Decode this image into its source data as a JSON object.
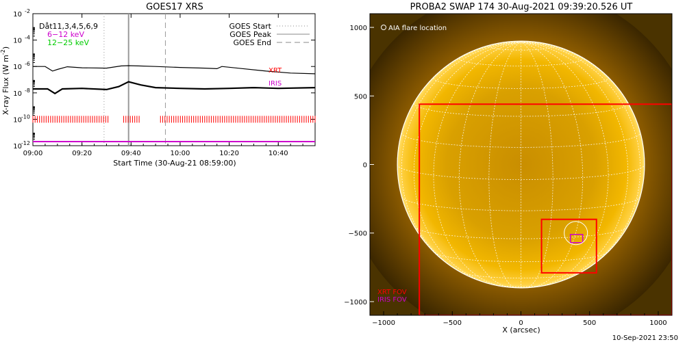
{
  "colors": {
    "background": "#ffffff",
    "axes": "#000000",
    "xrt": "#ff0000",
    "iris": "#cc00cc",
    "channel_low": "#cc00cc",
    "channel_high": "#00cc00",
    "sun_core": "#f5b800",
    "sun_dark": "#3a2800",
    "grid": "#ffffff"
  },
  "goes": {
    "title": "GOES17 XRS",
    "ylabel": "X-ray Flux (W m",
    "ylabel_sup": "-2",
    "ylabel_end": ")",
    "xlabel": "Start Time (30-Aug-21 08:59:00)",
    "legend_left": [
      {
        "text": "Dåt11,3,4,5,6,9",
        "color": "#000000"
      },
      {
        "text": "6−12 keV",
        "color": "#cc00cc"
      },
      {
        "text": "12−25 keV",
        "color": "#00cc00"
      }
    ],
    "legend_right": [
      {
        "text": "GOES Start",
        "style": "dotted"
      },
      {
        "text": "GOES Peak",
        "style": "solid"
      },
      {
        "text": "GOES End",
        "style": "dashed"
      }
    ],
    "labels": {
      "xrt": "XRT",
      "iris": "IRIS"
    }
  },
  "swap": {
    "title": "PROBA2 SWAP 174 30-Aug-2021 09:39:20.526 UT",
    "legend": "AIA flare location",
    "xlabel": "X (arcsec)",
    "fov_labels": {
      "xrt": "XRT FOV",
      "iris": "IRIS FOV"
    },
    "timestamp": "10-Sep-2021 23:50"
  },
  "chart_data": [
    {
      "type": "line",
      "title": "GOES17 XRS",
      "xlabel": "Start Time (30-Aug-21 08:59:00)",
      "ylabel": "X-ray Flux (W m-2)",
      "yscale": "log",
      "xlim": [
        "09:00",
        "10:55"
      ],
      "ylim": [
        1e-12,
        0.01
      ],
      "x_ticks": [
        "09:00",
        "09:20",
        "09:40",
        "10:00",
        "10:20",
        "10:40"
      ],
      "y_ticks": [
        "10^-12",
        "10^-10",
        "10^-8",
        "10^-6",
        "10^-4",
        "10^-2"
      ],
      "series": [
        {
          "name": "6−12 keV",
          "color": "#000000",
          "x": [
            "09:00",
            "09:05",
            "09:08",
            "09:10",
            "09:14",
            "09:20",
            "09:30",
            "09:36",
            "09:39",
            "09:43",
            "09:50",
            "10:00",
            "10:10",
            "10:15",
            "10:17",
            "10:25",
            "10:35",
            "10:45",
            "10:55"
          ],
          "y": [
            1e-06,
            1e-06,
            4.5e-07,
            6e-07,
            9.5e-07,
            8e-07,
            7.5e-07,
            1.1e-06,
            1.15e-06,
            1.1e-06,
            1e-06,
            8.5e-07,
            7.5e-07,
            6.8e-07,
            1e-06,
            7e-07,
            4.5e-07,
            3.2e-07,
            2.8e-07
          ]
        },
        {
          "name": "12−25 keV",
          "color": "#000000",
          "x": [
            "09:00",
            "09:06",
            "09:09",
            "09:12",
            "09:20",
            "09:30",
            "09:35",
            "09:39",
            "09:44",
            "09:50",
            "10:00",
            "10:10",
            "10:20",
            "10:30",
            "10:40",
            "10:55"
          ],
          "y": [
            2e-08,
            2e-08,
            9e-09,
            2e-08,
            2.2e-08,
            1.8e-08,
            3e-08,
            7e-08,
            4e-08,
            2.5e-08,
            2.2e-08,
            2e-08,
            2.2e-08,
            2.5e-08,
            2.2e-08,
            2.5e-08
          ]
        },
        {
          "name": "XRT",
          "color": "#ff0000",
          "intervals": [
            [
              "09:00",
              "09:31"
            ],
            [
              "09:37",
              "09:44"
            ],
            [
              "09:52",
              "10:55"
            ]
          ],
          "level": 1e-10
        },
        {
          "name": "IRIS",
          "color": "#cc00cc",
          "intervals": [
            [
              "09:00",
              "10:55"
            ]
          ],
          "level": 1.2e-12
        }
      ],
      "markers": {
        "goes_start": "09:29",
        "goes_peak": "09:39",
        "goes_end": "09:54"
      }
    },
    {
      "type": "image",
      "title": "PROBA2 SWAP 174 30-Aug-2021 09:39:20.526 UT",
      "xlabel": "X (arcsec)",
      "xlim": [
        -1100,
        1100
      ],
      "ylim": [
        -1100,
        1100
      ],
      "x_ticks": [
        -1000,
        -500,
        0,
        500,
        1000
      ],
      "y_ticks": [
        -1000,
        -500,
        0,
        500,
        1000
      ],
      "solar_radius": 900,
      "xrt_fov": [
        [
          -740,
          -1100,
          1100,
          440
        ],
        [
          150,
          -790,
          550,
          -400
        ]
      ],
      "iris_fov": [
        360,
        -570,
        450,
        -510
      ],
      "aia_flare_location": [
        400,
        -500
      ]
    }
  ]
}
